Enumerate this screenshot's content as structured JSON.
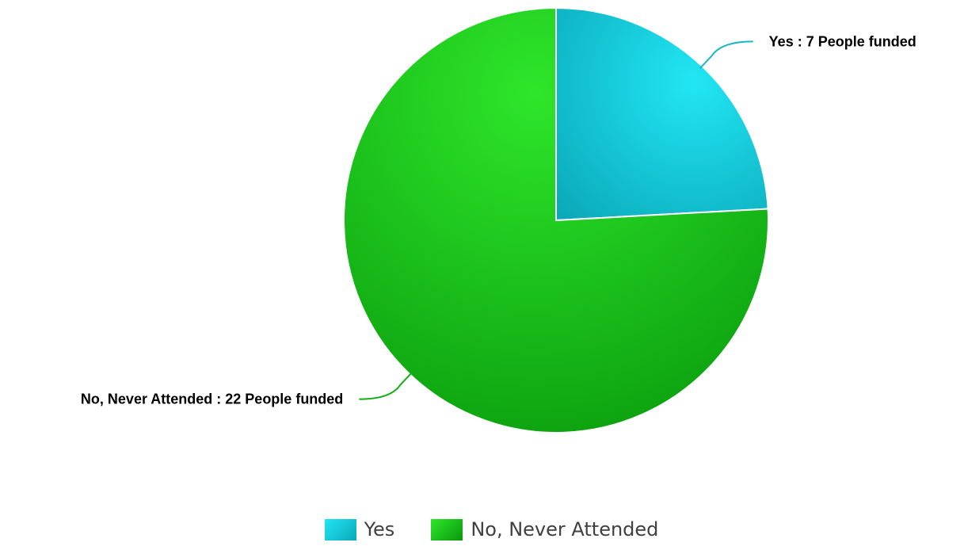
{
  "chart_data": {
    "type": "pie",
    "categories": [
      "Yes",
      "No, Never Attended"
    ],
    "values": [
      7,
      22
    ],
    "colors": [
      "#1ec8dc",
      "#1ebe1e"
    ],
    "data_labels": [
      "Yes : 7 People funded",
      "No, Never Attended : 22 People funded"
    ],
    "legend": {
      "placement": "bottom",
      "items": [
        {
          "label": "Yes",
          "color": "#1ec8dc"
        },
        {
          "label": "No, Never Attended",
          "color": "#1ebe1e"
        }
      ]
    }
  }
}
